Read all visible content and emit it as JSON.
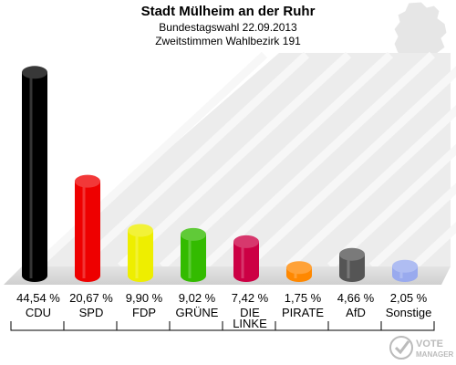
{
  "header": {
    "title": "Stadt Mülheim an der Ruhr",
    "subtitle1": "Bundestagswahl 22.09.2013",
    "subtitle2": "Zweitstimmen Wahlbezirk 191"
  },
  "watermark": {
    "line1": "VOTE",
    "line2": "MANAGER"
  },
  "icons": [
    "germany-map-icon",
    "vote-manager-logo-icon"
  ],
  "chart_data": {
    "type": "bar",
    "categories": [
      "CDU",
      "SPD",
      "FDP",
      "GRÜNE",
      "DIE LINKE",
      "PIRATE",
      "AfD",
      "Sonstige"
    ],
    "category_lines": [
      [
        "CDU"
      ],
      [
        "SPD"
      ],
      [
        "FDP"
      ],
      [
        "GRÜNE"
      ],
      [
        "DIE",
        "LINKE"
      ],
      [
        "PIRATE"
      ],
      [
        "AfD"
      ],
      [
        "Sonstige"
      ]
    ],
    "values": [
      44.54,
      20.67,
      9.9,
      9.02,
      7.42,
      1.75,
      4.66,
      2.05
    ],
    "value_labels": [
      "44,54 %",
      "20,67 %",
      "9,90 %",
      "9,02 %",
      "7,42 %",
      "1,75 %",
      "4,66 %",
      "2,05 %"
    ],
    "colors": [
      "#000000",
      "#ee0000",
      "#eeee00",
      "#33bb00",
      "#cc0044",
      "#ff8800",
      "#555555",
      "#99aaee"
    ],
    "ylim": [
      0,
      46
    ],
    "grid": false,
    "legend": "none"
  }
}
